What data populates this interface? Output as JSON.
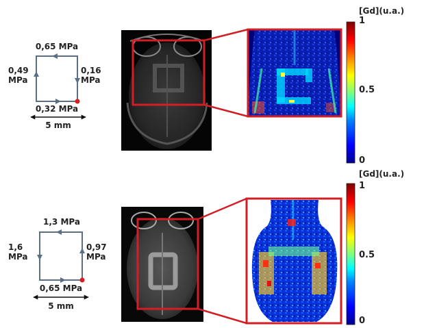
{
  "panels": [
    {
      "sides": {
        "top": "0,65 MPa",
        "left": "0,49\nMPa",
        "right": "0,16\nMPa",
        "bottom": "0,32 MPa"
      },
      "scale_bar": "5 mm",
      "colorbar": {
        "title": "[Gd](u.a.)",
        "ticks": [
          "1",
          "0.5",
          "0"
        ]
      }
    },
    {
      "sides": {
        "top": "1,3 MPa",
        "left": "1,6\nMPa",
        "right": "0,97\nMPa",
        "bottom": "0,65 MPa"
      },
      "scale_bar": "5 mm",
      "colorbar": {
        "title": "[Gd](u.a.)",
        "ticks": [
          "1",
          "0.5",
          "0"
        ]
      }
    }
  ],
  "colors": {
    "path": "#5a6e86",
    "start_dot": "#d81e1e",
    "highlight_box": "#d21f26",
    "colormap": [
      "#00008f",
      "#0000ff",
      "#0080ff",
      "#00ffff",
      "#80ff80",
      "#ffff00",
      "#ff8000",
      "#ff0000",
      "#800000"
    ]
  }
}
